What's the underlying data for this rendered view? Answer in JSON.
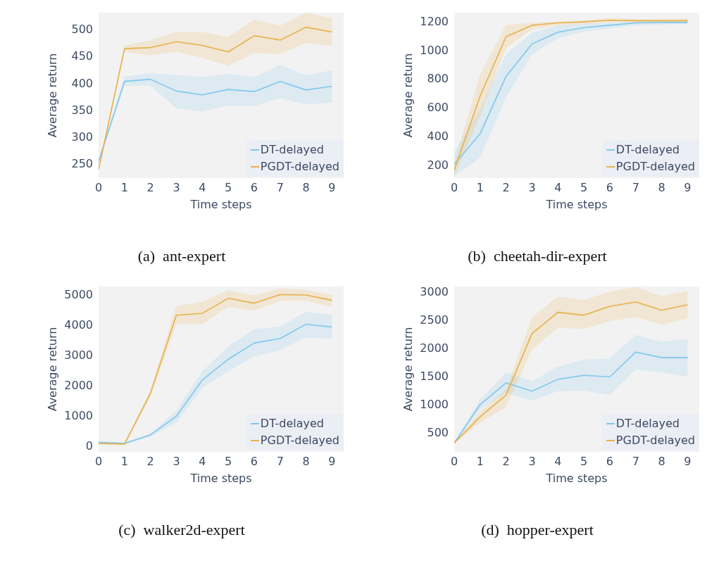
{
  "chart_data": [
    {
      "type": "line",
      "title": "(a)  ant-expert",
      "xlabel": "Time steps",
      "ylabel": "Average return",
      "x": [
        0,
        1,
        2,
        3,
        4,
        5,
        6,
        7,
        8,
        9
      ],
      "xlim": [
        0,
        9.45
      ],
      "xticks": [
        0,
        1,
        2,
        3,
        4,
        5,
        6,
        7,
        8,
        9
      ],
      "ylim": [
        223,
        531
      ],
      "yticks": [
        250,
        300,
        350,
        400,
        450,
        500
      ],
      "grid": false,
      "legend": "bottom right",
      "series": [
        {
          "name": "DT-delayed",
          "color": "#7ec8ec",
          "values": [
            254,
            403,
            407,
            385,
            378,
            388,
            384,
            403,
            387,
            394
          ],
          "lower": [
            250,
            395,
            395,
            353,
            347,
            358,
            357,
            372,
            360,
            364
          ],
          "upper": [
            258,
            412,
            418,
            415,
            411,
            417,
            411,
            434,
            414,
            424
          ]
        },
        {
          "name": "PGDT-delayed",
          "color": "#e8b04a",
          "values": [
            239,
            464,
            466,
            477,
            470,
            458,
            488,
            480,
            504,
            495
          ],
          "lower": [
            236,
            458,
            452,
            458,
            447,
            432,
            456,
            454,
            475,
            469
          ],
          "upper": [
            242,
            470,
            480,
            495,
            495,
            486,
            518,
            507,
            531,
            521
          ]
        }
      ]
    },
    {
      "type": "line",
      "title": "(b)  cheetah-dir-expert",
      "xlabel": "Time steps",
      "ylabel": "Average return",
      "x": [
        0,
        1,
        2,
        3,
        4,
        5,
        6,
        7,
        8,
        9
      ],
      "xlim": [
        0,
        9.45
      ],
      "xticks": [
        0,
        1,
        2,
        3,
        4,
        5,
        6,
        7,
        8,
        9
      ],
      "ylim": [
        106,
        1260
      ],
      "yticks": [
        200,
        400,
        600,
        800,
        1000,
        1200
      ],
      "grid": false,
      "legend": "bottom right",
      "series": [
        {
          "name": "DT-delayed",
          "color": "#7ec8ec",
          "values": [
            200,
            415,
            816,
            1042,
            1124,
            1156,
            1172,
            1189,
            1192,
            1192
          ],
          "lower": [
            120,
            249,
            671,
            969,
            1082,
            1128,
            1149,
            1172,
            1176,
            1181
          ],
          "upper": [
            286,
            588,
            969,
            1121,
            1170,
            1183,
            1190,
            1200,
            1200,
            1200
          ]
        },
        {
          "name": "PGDT-delayed",
          "color": "#e8b04a",
          "values": [
            161,
            678,
            1093,
            1172,
            1189,
            1197,
            1207,
            1204,
            1204,
            1204
          ],
          "lower": [
            117,
            539,
            1013,
            1145,
            1170,
            1181,
            1194,
            1194,
            1190,
            1190
          ],
          "upper": [
            214,
            830,
            1174,
            1190,
            1197,
            1204,
            1222,
            1214,
            1214,
            1218
          ]
        }
      ]
    },
    {
      "type": "line",
      "title": "(c)  walker2d-expert",
      "xlabel": "Time steps",
      "ylabel": "Average return",
      "x": [
        0,
        1,
        2,
        3,
        4,
        5,
        6,
        7,
        8,
        9
      ],
      "xlim": [
        0,
        9.45
      ],
      "xticks": [
        0,
        1,
        2,
        3,
        4,
        5,
        6,
        7,
        8,
        9
      ],
      "ylim": [
        -200,
        5260
      ],
      "yticks": [
        0,
        1000,
        2000,
        3000,
        4000,
        5000
      ],
      "grid": false,
      "legend": "bottom right",
      "series": [
        {
          "name": "DT-delayed",
          "color": "#7ec8ec",
          "values": [
            111,
            78,
            359,
            974,
            2170,
            2856,
            3392,
            3542,
            4013,
            3922
          ],
          "lower": [
            59,
            46,
            307,
            765,
            1908,
            2464,
            2954,
            3150,
            3575,
            3523
          ],
          "upper": [
            163,
            111,
            405,
            1170,
            2464,
            3281,
            3850,
            3935,
            4425,
            4327
          ]
        },
        {
          "name": "PGDT-delayed",
          "color": "#e8b04a",
          "values": [
            78,
            59,
            1732,
            4314,
            4373,
            4869,
            4706,
            4993,
            4974,
            4804
          ],
          "lower": [
            33,
            26,
            1614,
            4033,
            4013,
            4588,
            4458,
            4784,
            4784,
            4588
          ],
          "upper": [
            124,
            98,
            1843,
            4621,
            4752,
            5131,
            4961,
            5196,
            5144,
            4980
          ]
        }
      ]
    },
    {
      "type": "line",
      "title": "(d)  hopper-expert",
      "xlabel": "Time steps",
      "ylabel": "Average return",
      "x": [
        0,
        1,
        2,
        3,
        4,
        5,
        6,
        7,
        8,
        9
      ],
      "xlim": [
        0,
        9.45
      ],
      "xticks": [
        0,
        1,
        2,
        3,
        4,
        5,
        6,
        7,
        8,
        9
      ],
      "ylim": [
        150,
        3090
      ],
      "yticks": [
        500,
        1000,
        1500,
        2000,
        2500,
        3000
      ],
      "grid": false,
      "legend": "bottom right",
      "series": [
        {
          "name": "DT-delayed",
          "color": "#7ec8ec",
          "values": [
            307,
            991,
            1377,
            1229,
            1440,
            1510,
            1482,
            1924,
            1825,
            1825
          ],
          "lower": [
            297,
            907,
            1194,
            1061,
            1229,
            1236,
            1159,
            1615,
            1562,
            1492
          ],
          "upper": [
            318,
            1082,
            1562,
            1405,
            1668,
            1790,
            1808,
            2229,
            2106,
            2158
          ]
        },
        {
          "name": "PGDT-delayed",
          "color": "#e8b04a",
          "values": [
            307,
            774,
            1159,
            2253,
            2632,
            2579,
            2737,
            2814,
            2667,
            2765
          ],
          "lower": [
            297,
            668,
            949,
            1966,
            2358,
            2334,
            2474,
            2544,
            2414,
            2520
          ],
          "upper": [
            318,
            868,
            1264,
            2544,
            2912,
            2849,
            3000,
            3081,
            2919,
            3011
          ]
        }
      ]
    }
  ]
}
